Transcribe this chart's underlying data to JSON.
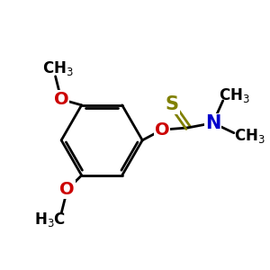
{
  "bg_color": "#ffffff",
  "bond_color": "#000000",
  "bond_width": 2.0,
  "atom_colors": {
    "C": "#000000",
    "O": "#cc0000",
    "N": "#0000cc",
    "S": "#808000"
  },
  "font_size": 12,
  "font_size_atom": 14
}
